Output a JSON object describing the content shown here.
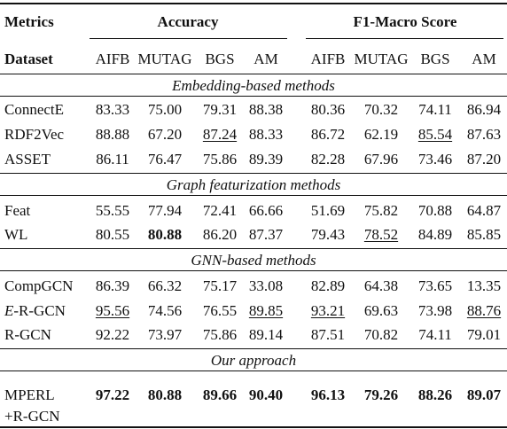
{
  "header": {
    "metrics_label": "Metrics",
    "dataset_label": "Dataset",
    "group1": "Accuracy",
    "group2": "F1-Macro Score",
    "datasets": [
      "AIFB",
      "MUTAG",
      "BGS",
      "AM",
      "AIFB",
      "MUTAG",
      "BGS",
      "AM"
    ]
  },
  "sections": [
    {
      "title": "Embedding-based methods",
      "rows": [
        {
          "name": "ConnectE",
          "values": [
            "83.33",
            "75.00",
            "79.31",
            "88.38",
            "80.36",
            "70.32",
            "74.11",
            "86.94"
          ],
          "underline": []
        },
        {
          "name": "RDF2Vec",
          "values": [
            "88.88",
            "67.20",
            "87.24",
            "88.33",
            "86.72",
            "62.19",
            "85.54",
            "87.63"
          ],
          "underline": [
            2,
            6
          ]
        },
        {
          "name": "ASSET",
          "values": [
            "86.11",
            "76.47",
            "75.86",
            "89.39",
            "82.28",
            "67.96",
            "73.46",
            "87.20"
          ],
          "underline": []
        }
      ]
    },
    {
      "title": "Graph featurization methods",
      "rows": [
        {
          "name": "Feat",
          "values": [
            "55.55",
            "77.94",
            "72.41",
            "66.66",
            "51.69",
            "75.82",
            "70.88",
            "64.87"
          ],
          "underline": []
        },
        {
          "name": "WL",
          "values": [
            "80.55",
            "80.88",
            "86.20",
            "87.37",
            "79.43",
            "78.52",
            "84.89",
            "85.85"
          ],
          "underline": [
            5
          ],
          "bold": [
            1
          ]
        }
      ]
    },
    {
      "title": "GNN-based methods",
      "rows": [
        {
          "name": "CompGCN",
          "values": [
            "86.39",
            "66.32",
            "75.17",
            "33.08",
            "82.89",
            "64.38",
            "73.65",
            "13.35"
          ],
          "underline": []
        },
        {
          "name_prefix": "E",
          "name_suffix": "-R-GCN",
          "values": [
            "95.56",
            "74.56",
            "76.55",
            "89.85",
            "93.21",
            "69.63",
            "73.98",
            "88.76"
          ],
          "underline": [
            0,
            3,
            4,
            7
          ]
        },
        {
          "name": "R-GCN",
          "values": [
            "92.22",
            "73.97",
            "75.86",
            "89.14",
            "87.51",
            "70.82",
            "74.11",
            "79.01"
          ],
          "underline": []
        }
      ]
    },
    {
      "title": "Our approach",
      "rows": [
        {
          "name_line1": "MPERL",
          "name_line2": "+R-GCN",
          "values": [
            "97.22",
            "80.88",
            "89.66",
            "90.40",
            "96.13",
            "79.26",
            "88.26",
            "89.07"
          ],
          "underline": [],
          "bold": [
            0,
            1,
            2,
            3,
            4,
            5,
            6,
            7
          ]
        }
      ]
    }
  ]
}
